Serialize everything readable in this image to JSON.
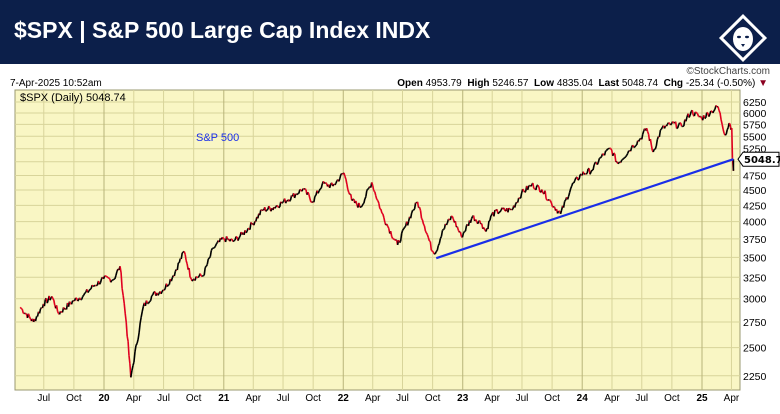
{
  "header": {
    "title": "$SPX | S&P 500 Large Cap Index INDX",
    "logo_text": "StockCharts lion logo"
  },
  "credit": "©StockCharts.com",
  "date_time": "7-Apr-2025 10:52am",
  "quote": {
    "open_label": "Open",
    "open": "4953.79",
    "high_label": "High",
    "high": "5246.57",
    "low_label": "Low",
    "low": "4835.04",
    "last_label": "Last",
    "last": "5048.74",
    "chg_label": "Chg",
    "chg": "-25.34 (-0.50%)",
    "chg_icon": "down-triangle"
  },
  "colors": {
    "header_bg": "#0c1f4a",
    "plot_bg": "#f9f6c4",
    "grid": "#d8d49a",
    "up": "#000000",
    "down": "#e00020",
    "trendline": "#1a2ee8",
    "annotation": "#1a2ee8"
  },
  "chart_data": {
    "type": "line",
    "legend": "$SPX (Daily) 5048.74",
    "annotation": "S&P 500",
    "last_value_label": "5048.74",
    "y_scale": "log",
    "ylim": [
      2150,
      6350
    ],
    "grid": true,
    "y_ticks": [
      "6250",
      "6000",
      "5750",
      "5500",
      "5250",
      "4750",
      "4500",
      "4250",
      "4000",
      "3750",
      "3500",
      "3250",
      "3000",
      "2750",
      "2500",
      "2250"
    ],
    "x_ticks": [
      {
        "label": "Jul",
        "date": "2019-07-01"
      },
      {
        "label": "Oct",
        "date": "2019-10-01"
      },
      {
        "label": "20",
        "date": "2020-01-01",
        "bold": true
      },
      {
        "label": "Apr",
        "date": "2020-04-01"
      },
      {
        "label": "Jul",
        "date": "2020-07-01"
      },
      {
        "label": "Oct",
        "date": "2020-10-01"
      },
      {
        "label": "21",
        "date": "2021-01-01",
        "bold": true
      },
      {
        "label": "Apr",
        "date": "2021-04-01"
      },
      {
        "label": "Jul",
        "date": "2021-07-01"
      },
      {
        "label": "Oct",
        "date": "2021-10-01"
      },
      {
        "label": "22",
        "date": "2022-01-01",
        "bold": true
      },
      {
        "label": "Apr",
        "date": "2022-04-01"
      },
      {
        "label": "Jul",
        "date": "2022-07-01"
      },
      {
        "label": "Oct",
        "date": "2022-10-01"
      },
      {
        "label": "23",
        "date": "2023-01-01",
        "bold": true
      },
      {
        "label": "Apr",
        "date": "2023-04-01"
      },
      {
        "label": "Jul",
        "date": "2023-07-01"
      },
      {
        "label": "Oct",
        "date": "2023-10-01"
      },
      {
        "label": "24",
        "date": "2024-01-01",
        "bold": true
      },
      {
        "label": "Apr",
        "date": "2024-04-01"
      },
      {
        "label": "Jul",
        "date": "2024-07-01"
      },
      {
        "label": "Oct",
        "date": "2024-10-01"
      },
      {
        "label": "25",
        "date": "2025-01-01",
        "bold": true
      },
      {
        "label": "Apr",
        "date": "2025-04-01"
      }
    ],
    "series": [
      {
        "values": [
          [
            "2019-04-20",
            2905
          ],
          [
            "2019-05-31",
            2752
          ],
          [
            "2019-06-30",
            2942
          ],
          [
            "2019-07-26",
            3025
          ],
          [
            "2019-08-15",
            2840
          ],
          [
            "2019-09-30",
            2977
          ],
          [
            "2019-10-31",
            3038
          ],
          [
            "2019-11-29",
            3141
          ],
          [
            "2019-12-31",
            3231
          ],
          [
            "2020-01-31",
            3226
          ],
          [
            "2020-02-19",
            3386
          ],
          [
            "2020-03-09",
            2746
          ],
          [
            "2020-03-23",
            2237
          ],
          [
            "2020-04-30",
            2912
          ],
          [
            "2020-05-29",
            3044
          ],
          [
            "2020-06-30",
            3100
          ],
          [
            "2020-07-31",
            3271
          ],
          [
            "2020-09-02",
            3580
          ],
          [
            "2020-09-23",
            3237
          ],
          [
            "2020-10-30",
            3270
          ],
          [
            "2020-11-30",
            3622
          ],
          [
            "2020-12-31",
            3756
          ],
          [
            "2021-01-29",
            3714
          ],
          [
            "2021-02-26",
            3811
          ],
          [
            "2021-03-31",
            3973
          ],
          [
            "2021-04-30",
            4181
          ],
          [
            "2021-05-28",
            4204
          ],
          [
            "2021-06-30",
            4298
          ],
          [
            "2021-07-30",
            4395
          ],
          [
            "2021-08-31",
            4523
          ],
          [
            "2021-09-30",
            4308
          ],
          [
            "2021-10-29",
            4605
          ],
          [
            "2021-11-30",
            4567
          ],
          [
            "2022-01-03",
            4797
          ],
          [
            "2022-01-27",
            4327
          ],
          [
            "2022-02-24",
            4225
          ],
          [
            "2022-03-29",
            4631
          ],
          [
            "2022-04-29",
            4132
          ],
          [
            "2022-05-20",
            3901
          ],
          [
            "2022-06-16",
            3667
          ],
          [
            "2022-07-29",
            4130
          ],
          [
            "2022-08-16",
            4305
          ],
          [
            "2022-09-30",
            3586
          ],
          [
            "2022-10-12",
            3577
          ],
          [
            "2022-10-31",
            3872
          ],
          [
            "2022-11-30",
            4080
          ],
          [
            "2022-12-28",
            3783
          ],
          [
            "2023-01-31",
            4077
          ],
          [
            "2023-02-28",
            3970
          ],
          [
            "2023-03-13",
            3855
          ],
          [
            "2023-03-31",
            4109
          ],
          [
            "2023-04-28",
            4169
          ],
          [
            "2023-05-31",
            4180
          ],
          [
            "2023-06-30",
            4450
          ],
          [
            "2023-07-31",
            4589
          ],
          [
            "2023-08-31",
            4508
          ],
          [
            "2023-09-29",
            4288
          ],
          [
            "2023-10-27",
            4117
          ],
          [
            "2023-11-30",
            4568
          ],
          [
            "2023-12-29",
            4770
          ],
          [
            "2024-01-31",
            4846
          ],
          [
            "2024-02-29",
            5096
          ],
          [
            "2024-03-28",
            5254
          ],
          [
            "2024-04-19",
            4967
          ],
          [
            "2024-05-31",
            5278
          ],
          [
            "2024-06-28",
            5460
          ],
          [
            "2024-07-16",
            5667
          ],
          [
            "2024-08-05",
            5186
          ],
          [
            "2024-08-30",
            5648
          ],
          [
            "2024-09-30",
            5762
          ],
          [
            "2024-10-31",
            5705
          ],
          [
            "2024-11-29",
            6032
          ],
          [
            "2024-12-31",
            5882
          ],
          [
            "2025-01-31",
            6041
          ],
          [
            "2025-02-19",
            6144
          ],
          [
            "2025-03-13",
            5522
          ],
          [
            "2025-03-25",
            5777
          ],
          [
            "2025-04-02",
            5671
          ],
          [
            "2025-04-04",
            5074
          ],
          [
            "2025-04-07",
            4835
          ],
          [
            "2025-04-07",
            5048.74
          ]
        ]
      }
    ],
    "trendline": [
      [
        "2022-10-12",
        3490
      ],
      [
        "2025-04-07",
        5048.74
      ]
    ]
  }
}
